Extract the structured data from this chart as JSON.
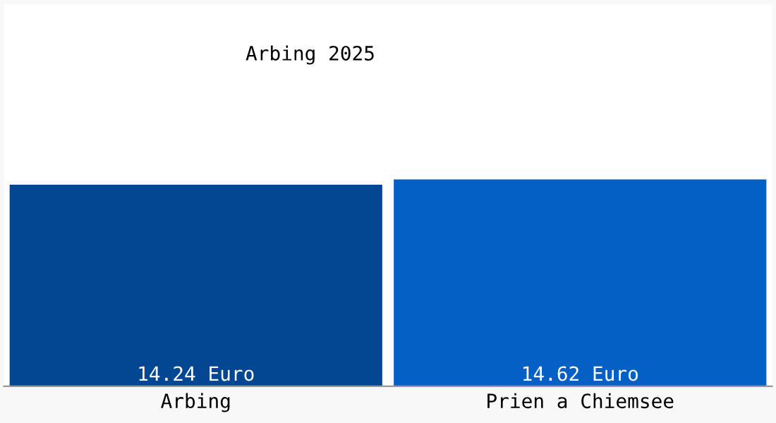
{
  "chart_data": {
    "type": "bar",
    "title": "Arbing 2025",
    "categories": [
      "Arbing",
      "Prien a Chiemsee"
    ],
    "values": [
      14.24,
      14.62
    ],
    "value_labels": [
      "14.24 Euro",
      "14.62 Euro"
    ],
    "colors": [
      "#034691",
      "#0560c6"
    ],
    "ylim": [
      0,
      27
    ],
    "tick_labels": "x",
    "grid": false,
    "legend": false
  }
}
